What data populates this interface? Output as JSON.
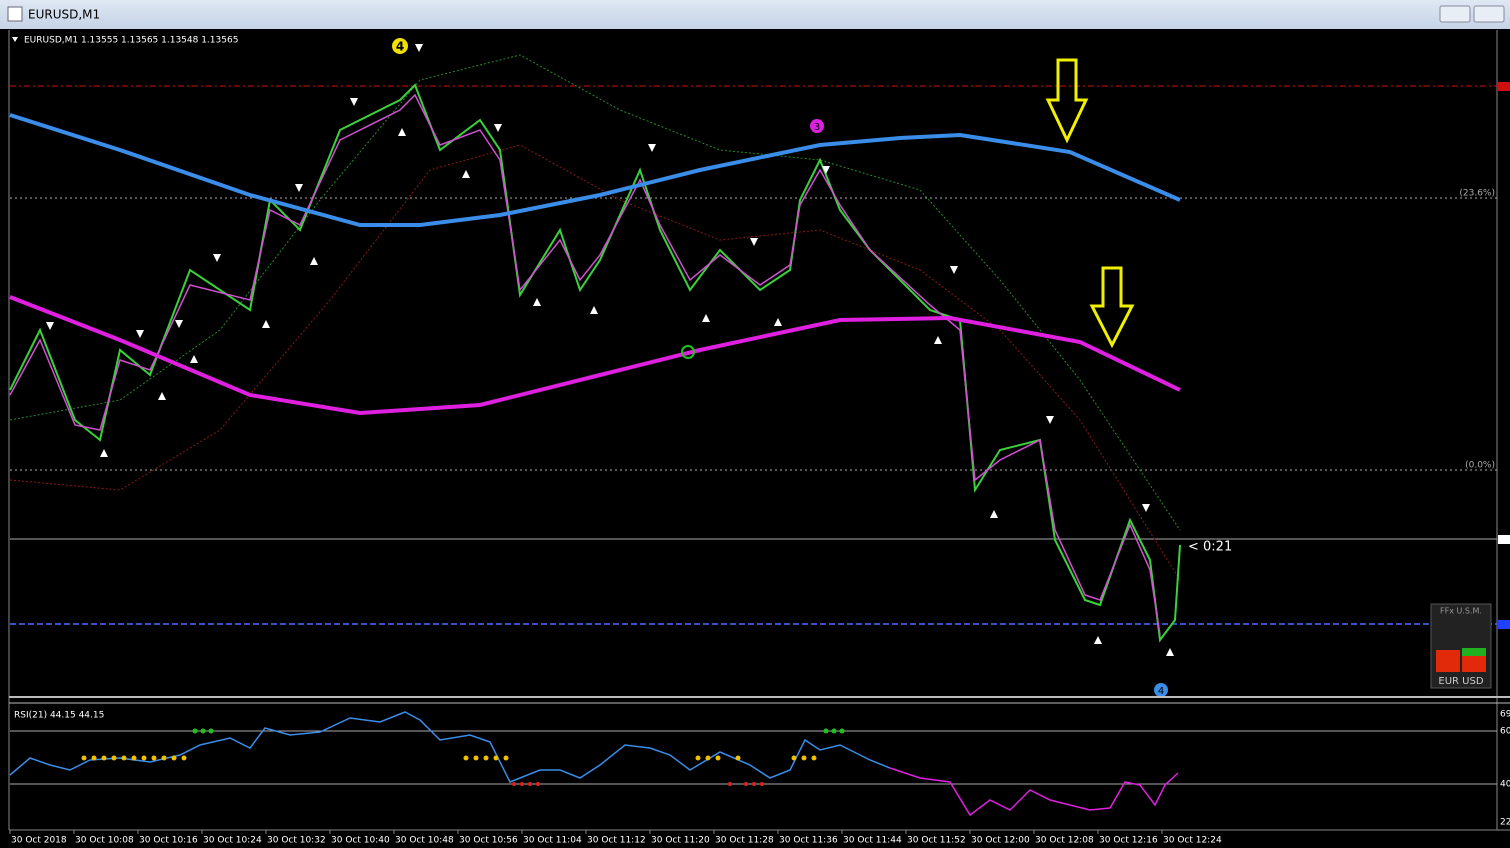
{
  "window": {
    "title": "EURUSD,M1"
  },
  "chart": {
    "header": "EURUSD,M1  1.13555 1.13565 1.13548 1.13565",
    "markers": [
      "4",
      "3",
      "4"
    ],
    "fib_labels": [
      "(23.6%)",
      "(0.0%)"
    ],
    "countdown": "< 0:21",
    "widget": {
      "title": "FFx U.S.M.",
      "pair": "EUR USD"
    }
  },
  "rsi": {
    "header": "RSI(21) 44.15 44.15",
    "axis_labels": [
      "69",
      "60",
      "40",
      "22"
    ]
  },
  "time_axis": [
    "30 Oct 2018",
    "30 Oct 10:08",
    "30 Oct 10:16",
    "30 Oct 10:24",
    "30 Oct 10:32",
    "30 Oct 10:40",
    "30 Oct 10:48",
    "30 Oct 10:56",
    "30 Oct 11:04",
    "30 Oct 11:12",
    "30 Oct 11:20",
    "30 Oct 11:28",
    "30 Oct 11:36",
    "30 Oct 11:44",
    "30 Oct 11:52",
    "30 Oct 12:00",
    "30 Oct 12:08",
    "30 Oct 12:16",
    "30 Oct 12:24"
  ]
}
